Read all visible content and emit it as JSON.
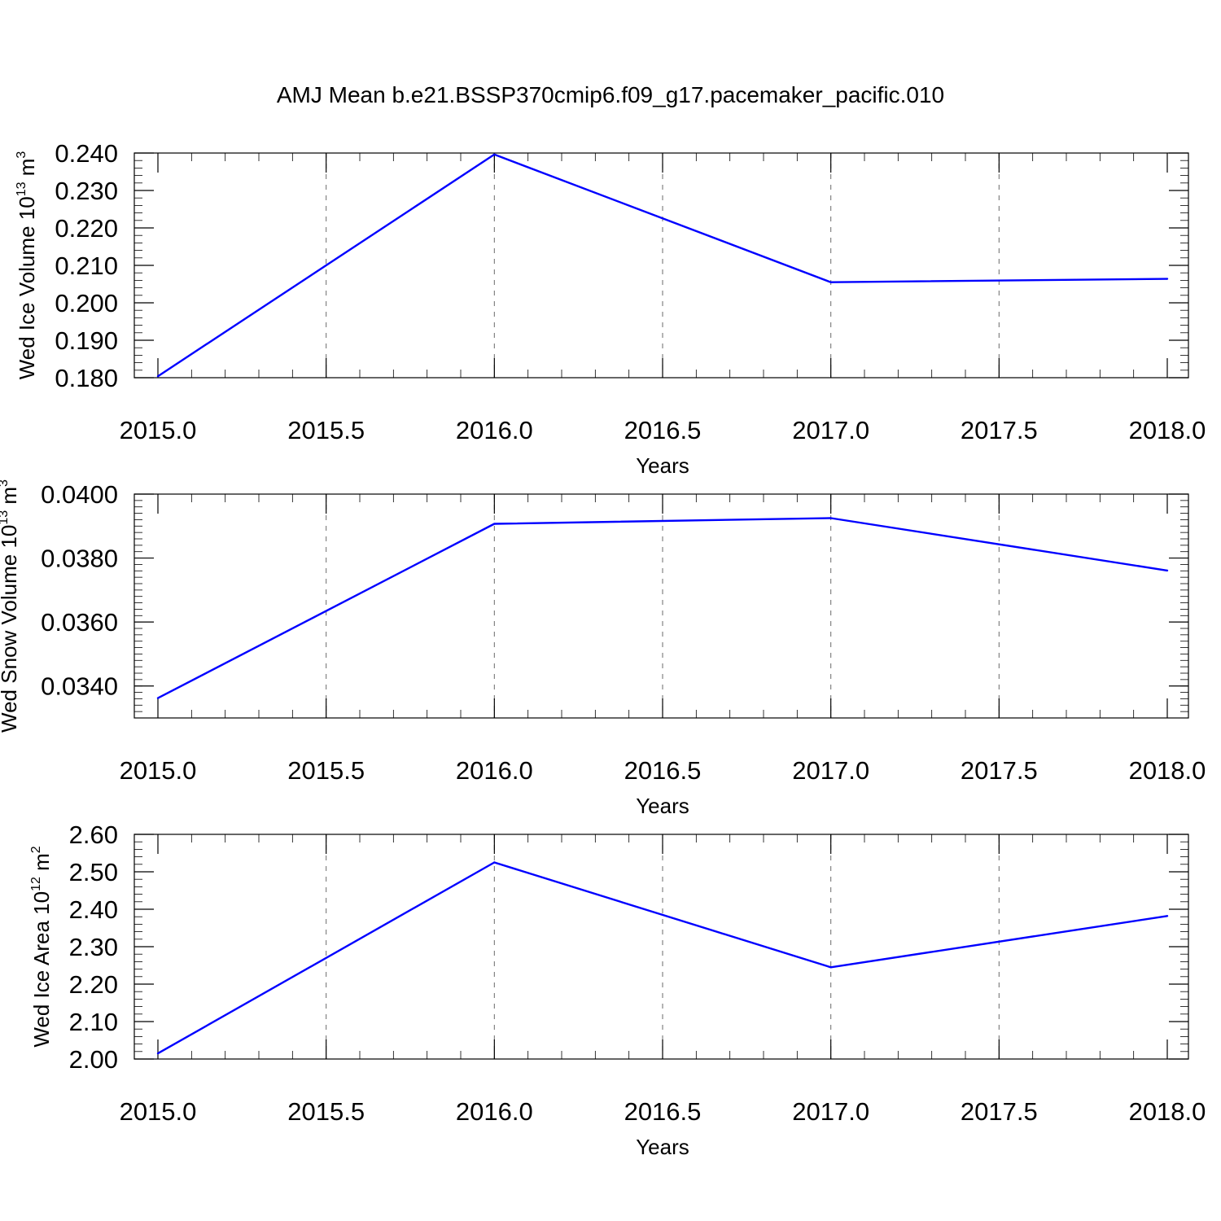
{
  "title": "AMJ Mean b.e21.BSSP370cmip6.f09_g17.pacemaker_pacific.010",
  "colors": {
    "line": "#0000ff",
    "grid": "#777777",
    "frame": "#000000"
  },
  "chart_data": [
    {
      "type": "line",
      "xlabel": "Years",
      "ylabel": {
        "prefix": "Wed Ice Volume 10",
        "exponent": "13",
        "unit": " m",
        "unit_exponent": "3"
      },
      "xlim": [
        2015.0,
        2018.0
      ],
      "ylim": [
        0.18,
        0.24
      ],
      "xticks": [
        2015.0,
        2015.5,
        2016.0,
        2016.5,
        2017.0,
        2017.5,
        2018.0
      ],
      "xtick_labels": [
        "2015.0",
        "2015.5",
        "2016.0",
        "2016.5",
        "2017.0",
        "2017.5",
        "2018.0"
      ],
      "yticks": [
        0.18,
        0.19,
        0.2,
        0.21,
        0.22,
        0.23,
        0.24
      ],
      "ytick_labels": [
        "0.180",
        "0.190",
        "0.200",
        "0.210",
        "0.220",
        "0.230",
        "0.240"
      ],
      "x_minor_step": 0.1,
      "y_minor_step": 0.002,
      "grid": "vertical dashed at major x ticks",
      "series": [
        {
          "x": [
            2015.0,
            2016.0,
            2017.0,
            2018.0
          ],
          "values": [
            0.1804,
            0.2396,
            0.2055,
            0.2064
          ]
        }
      ]
    },
    {
      "type": "line",
      "xlabel": "Years",
      "ylabel": {
        "prefix": "Wed Snow Volume 10",
        "exponent": "13",
        "unit": " m",
        "unit_exponent": "3"
      },
      "xlim": [
        2015.0,
        2018.0
      ],
      "ylim": [
        0.033,
        0.04
      ],
      "xticks": [
        2015.0,
        2015.5,
        2016.0,
        2016.5,
        2017.0,
        2017.5,
        2018.0
      ],
      "xtick_labels": [
        "2015.0",
        "2015.5",
        "2016.0",
        "2016.5",
        "2017.0",
        "2017.5",
        "2018.0"
      ],
      "yticks": [
        0.034,
        0.036,
        0.038,
        0.04
      ],
      "ytick_labels": [
        "0.0340",
        "0.0360",
        "0.0380",
        "0.0400"
      ],
      "x_minor_step": 0.1,
      "y_minor_step": 0.0002,
      "grid": "vertical dashed at major x ticks",
      "series": [
        {
          "x": [
            2015.0,
            2016.0,
            2017.0,
            2018.0
          ],
          "values": [
            0.03362,
            0.03907,
            0.03925,
            0.03761
          ]
        }
      ]
    },
    {
      "type": "line",
      "xlabel": "Years",
      "ylabel": {
        "prefix": "Wed Ice Area 10",
        "exponent": "12",
        "unit": " m",
        "unit_exponent": "2"
      },
      "xlim": [
        2015.0,
        2018.0
      ],
      "ylim": [
        2.0,
        2.6
      ],
      "xticks": [
        2015.0,
        2015.5,
        2016.0,
        2016.5,
        2017.0,
        2017.5,
        2018.0
      ],
      "xtick_labels": [
        "2015.0",
        "2015.5",
        "2016.0",
        "2016.5",
        "2017.0",
        "2017.5",
        "2018.0"
      ],
      "yticks": [
        2.0,
        2.1,
        2.2,
        2.3,
        2.4,
        2.5,
        2.6
      ],
      "ytick_labels": [
        "2.00",
        "2.10",
        "2.20",
        "2.30",
        "2.40",
        "2.50",
        "2.60"
      ],
      "x_minor_step": 0.1,
      "y_minor_step": 0.02,
      "grid": "vertical dashed at major x ticks",
      "series": [
        {
          "x": [
            2015.0,
            2016.0,
            2017.0,
            2018.0
          ],
          "values": [
            2.015,
            2.525,
            2.245,
            2.382
          ]
        }
      ]
    }
  ]
}
